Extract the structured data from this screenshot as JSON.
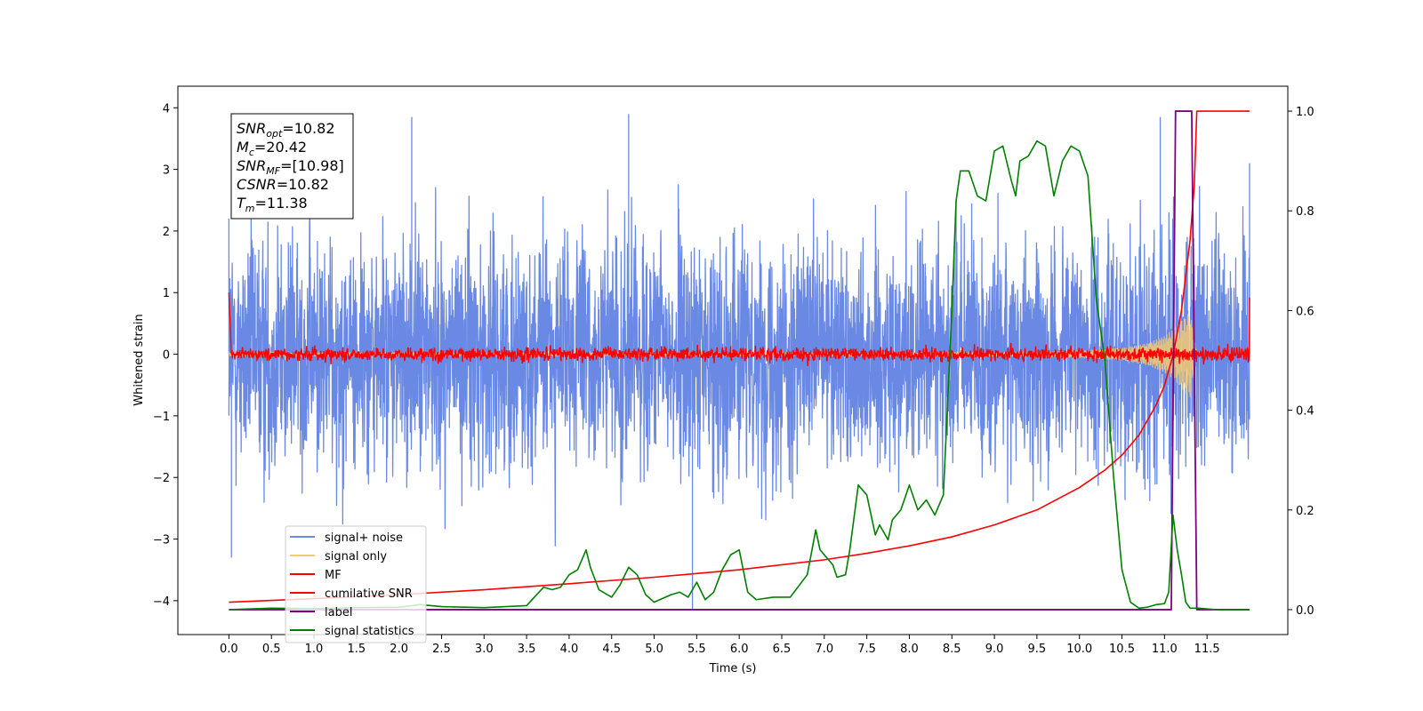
{
  "chart_data": {
    "type": "line",
    "xlabel": "Time (s)",
    "ylabel": "Whitened strain",
    "xlim": [
      -0.6,
      12.45
    ],
    "ylim": [
      -4.55,
      4.35
    ],
    "y2lim": [
      -0.05,
      1.05
    ],
    "x_ticks": [
      0.0,
      0.5,
      1.0,
      1.5,
      2.0,
      2.5,
      3.0,
      3.5,
      4.0,
      4.5,
      5.0,
      5.5,
      6.0,
      6.5,
      7.0,
      7.5,
      8.0,
      8.5,
      9.0,
      9.5,
      10.0,
      10.5,
      11.0,
      11.5
    ],
    "x_tick_labels": [
      "0.0",
      "0.5",
      "1.0",
      "1.5",
      "2.0",
      "2.5",
      "3.0",
      "3.5",
      "4.0",
      "4.5",
      "5.0",
      "5.5",
      "6.0",
      "6.5",
      "7.0",
      "7.5",
      "8.0",
      "8.5",
      "9.0",
      "9.5",
      "10.0",
      "10.5",
      "11.0",
      "11.5"
    ],
    "y_ticks": [
      -4,
      -3,
      -2,
      -1,
      0,
      1,
      2,
      3,
      4
    ],
    "y_tick_labels": [
      "−4",
      "−3",
      "−2",
      "−1",
      "0",
      "1",
      "2",
      "3",
      "4"
    ],
    "y2_ticks": [
      0.0,
      0.2,
      0.4,
      0.6,
      0.8,
      1.0
    ],
    "y2_tick_labels": [
      "0.0",
      "0.2",
      "0.4",
      "0.6",
      "0.8",
      "1.0"
    ],
    "legend_position": "lower-left",
    "series": [
      {
        "name": "signal+ noise",
        "axis": "left",
        "color": "#6a89e5",
        "style": "dense-noise",
        "x_range": [
          0.0,
          12.0
        ],
        "envelope_upper": 2.4,
        "envelope_lower": -2.4,
        "peaks": [
          [
            0.0,
            2.2
          ],
          [
            0.03,
            -3.3
          ],
          [
            2.15,
            3.85
          ],
          [
            4.7,
            3.9
          ],
          [
            5.45,
            -4.15
          ],
          [
            10.95,
            3.85
          ],
          [
            12.0,
            3.1
          ]
        ]
      },
      {
        "name": "signal only",
        "axis": "left",
        "color": "#f5c971",
        "style": "chirp",
        "x": [
          0.0,
          9.5,
          10.0,
          10.5,
          10.8,
          11.0,
          11.1,
          11.2,
          11.3,
          11.38
        ],
        "amplitude": [
          0.02,
          0.04,
          0.06,
          0.1,
          0.18,
          0.3,
          0.4,
          0.55,
          0.7,
          0.0
        ]
      },
      {
        "name": "MF",
        "axis": "left",
        "color": "#ff0000",
        "style": "noise",
        "x_range": [
          0.0,
          12.0
        ],
        "amplitude": 0.1,
        "start_value": 1.0,
        "end_value": 0.92
      },
      {
        "name": "cumilative SNR",
        "axis": "right",
        "color": "#ff0000",
        "x": [
          0.0,
          1.0,
          2.0,
          3.0,
          4.0,
          5.0,
          6.0,
          7.0,
          7.5,
          8.0,
          8.5,
          9.0,
          9.5,
          10.0,
          10.3,
          10.5,
          10.7,
          10.9,
          11.0,
          11.1,
          11.2,
          11.3,
          11.35,
          11.38,
          11.4,
          11.5,
          12.0
        ],
        "y": [
          0.015,
          0.022,
          0.03,
          0.04,
          0.052,
          0.065,
          0.08,
          0.1,
          0.113,
          0.128,
          0.146,
          0.17,
          0.2,
          0.245,
          0.28,
          0.31,
          0.35,
          0.41,
          0.45,
          0.51,
          0.6,
          0.74,
          0.85,
          1.0,
          1.0,
          1.0,
          1.0
        ]
      },
      {
        "name": "label",
        "axis": "right",
        "color": "#800080",
        "x": [
          0.0,
          11.08,
          11.13,
          11.32,
          11.38,
          12.0
        ],
        "y": [
          0.0,
          0.0,
          1.0,
          1.0,
          0.0,
          0.0
        ]
      },
      {
        "name": "signal statistics",
        "axis": "right",
        "color": "#008000",
        "x": [
          0.0,
          0.5,
          1.0,
          1.5,
          2.0,
          2.25,
          2.5,
          3.0,
          3.5,
          3.7,
          3.8,
          3.9,
          4.0,
          4.1,
          4.2,
          4.25,
          4.35,
          4.5,
          4.6,
          4.7,
          4.8,
          4.9,
          5.0,
          5.2,
          5.3,
          5.4,
          5.5,
          5.6,
          5.7,
          5.8,
          5.9,
          6.0,
          6.1,
          6.2,
          6.4,
          6.6,
          6.8,
          6.9,
          6.95,
          7.1,
          7.15,
          7.25,
          7.3,
          7.4,
          7.5,
          7.6,
          7.65,
          7.75,
          7.8,
          7.9,
          8.0,
          8.1,
          8.2,
          8.3,
          8.4,
          8.5,
          8.55,
          8.6,
          8.7,
          8.8,
          8.9,
          9.0,
          9.1,
          9.2,
          9.25,
          9.3,
          9.4,
          9.5,
          9.6,
          9.7,
          9.8,
          9.9,
          10.0,
          10.1,
          10.2,
          10.3,
          10.4,
          10.5,
          10.6,
          10.7,
          10.8,
          10.9,
          11.0,
          11.05,
          11.1,
          11.15,
          11.2,
          11.25,
          11.3,
          11.35,
          11.4,
          11.6,
          12.0
        ],
        "y": [
          0.0,
          0.003,
          0.002,
          0.004,
          0.005,
          0.01,
          0.006,
          0.004,
          0.008,
          0.045,
          0.04,
          0.045,
          0.07,
          0.08,
          0.12,
          0.085,
          0.04,
          0.025,
          0.05,
          0.085,
          0.07,
          0.03,
          0.015,
          0.03,
          0.035,
          0.025,
          0.055,
          0.02,
          0.035,
          0.08,
          0.11,
          0.12,
          0.035,
          0.02,
          0.025,
          0.025,
          0.07,
          0.16,
          0.12,
          0.09,
          0.065,
          0.07,
          0.12,
          0.25,
          0.23,
          0.15,
          0.17,
          0.14,
          0.18,
          0.2,
          0.25,
          0.2,
          0.22,
          0.19,
          0.23,
          0.6,
          0.82,
          0.88,
          0.88,
          0.83,
          0.82,
          0.92,
          0.93,
          0.86,
          0.83,
          0.9,
          0.91,
          0.94,
          0.93,
          0.83,
          0.9,
          0.93,
          0.92,
          0.87,
          0.62,
          0.5,
          0.27,
          0.08,
          0.015,
          0.003,
          0.005,
          0.01,
          0.012,
          0.035,
          0.19,
          0.12,
          0.07,
          0.015,
          0.003,
          0.003,
          0.003,
          0.0,
          0.0
        ]
      }
    ],
    "annotation_lines": [
      {
        "base": "SNR",
        "sub": "opt",
        "value": "=10.82"
      },
      {
        "base": "M",
        "sub": "c",
        "value": "=20.42"
      },
      {
        "base": "SNR",
        "sub": "MF",
        "value": "=[10.98]"
      },
      {
        "base": "CSNR",
        "sub": "",
        "value": "=10.82"
      },
      {
        "base": "T",
        "sub": "m",
        "value": "=11.38"
      }
    ]
  }
}
